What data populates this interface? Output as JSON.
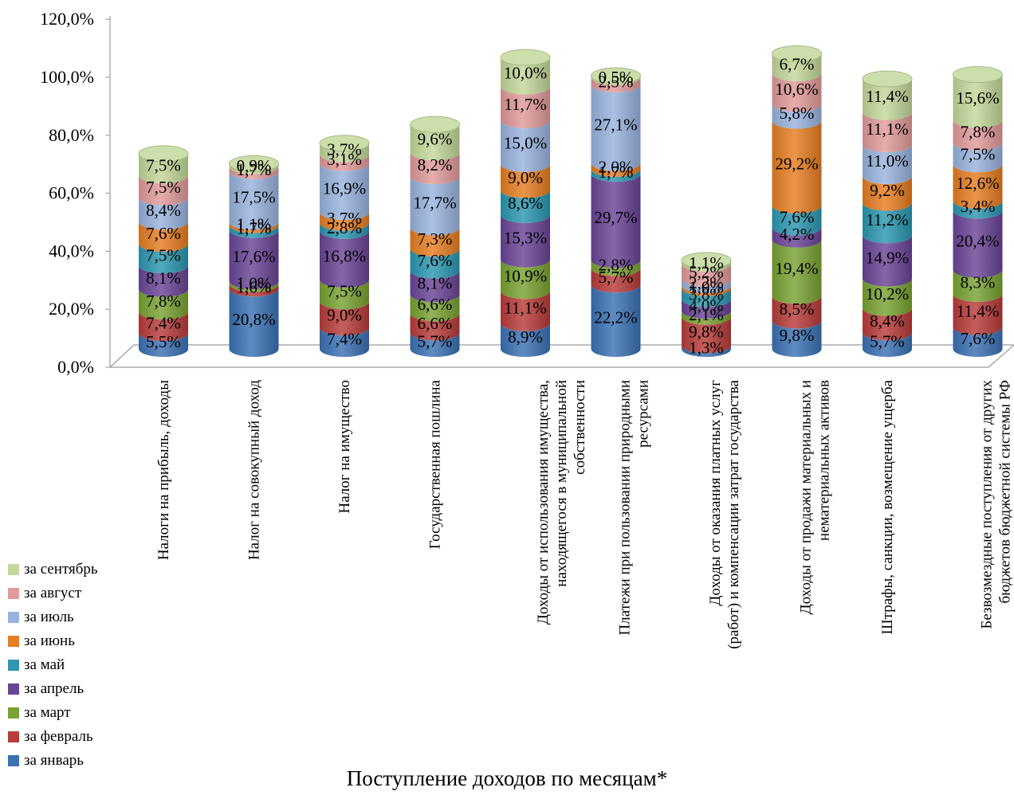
{
  "chart_data": {
    "type": "bar",
    "stacked": true,
    "three_d": true,
    "xlabel": "Поступление доходов по месяцам*",
    "ylabel": "",
    "ylim": [
      0,
      120
    ],
    "yticks": [
      "0,0%",
      "20,0%",
      "40,0%",
      "60,0%",
      "80,0%",
      "100,0%",
      "120,0%"
    ],
    "legend_position": "bottom-left",
    "categories": [
      "Налоги на прибыль, доходы",
      "Налог на совокупный доход",
      "Налог на имущество",
      "Государственная пошлина",
      "Доходы от использования имущества, находящегося в муниципальной собственности",
      "Платежи при пользовании природными ресурсами",
      "Доходы от оказания платных услуг (работ) и компенсации затрат государства",
      "Доходы от продажи материальных и нематериальных активов",
      "Штрафы, санкции, возмещение ущерба",
      "Безвозмездные поступления от других бюджетов бюджетной системы РФ"
    ],
    "category_lines": [
      [
        "Налоги на прибыль, доходы"
      ],
      [
        "Налог на совокупный доход"
      ],
      [
        "Налог на имущество"
      ],
      [
        "Государственная пошлина"
      ],
      [
        "Доходы от использования имущества,",
        "находящегося в муниципальной",
        "собственности"
      ],
      [
        "Платежи при пользовании природными",
        "ресурсами"
      ],
      [
        "Доходы от оказания платных услуг",
        "(работ) и компенсации затрат государства"
      ],
      [
        "Доходы от продажи материальных и",
        "нематериальных активов"
      ],
      [
        "Штрафы, санкции, возмещение ущерба"
      ],
      [
        "Безвозмездные поступления от других",
        "бюджетов бюджетной системы РФ"
      ]
    ],
    "series": [
      {
        "name": "за январь",
        "color": "#3b72b4",
        "values": [
          5.5,
          20.8,
          7.4,
          5.7,
          8.9,
          22.2,
          1.3,
          9.8,
          5.7,
          7.6
        ],
        "labels": [
          "5,5%",
          "20,8%",
          "7,4%",
          "5,7%",
          "8,9%",
          "22,2%",
          "1,3%",
          "9,8%",
          "5,7%",
          "7,6%"
        ]
      },
      {
        "name": "за февраль",
        "color": "#b83c3a",
        "values": [
          7.4,
          1.6,
          9.0,
          6.6,
          11.1,
          5.7,
          9.8,
          8.5,
          8.4,
          11.4
        ],
        "labels": [
          "7,4%",
          "1,6%",
          "9,0%",
          "6,6%",
          "11,1%",
          "5,7%",
          "9,8%",
          "8,5%",
          "8,4%",
          "11,4%"
        ]
      },
      {
        "name": "за март",
        "color": "#79a232",
        "values": [
          7.8,
          1.0,
          7.5,
          6.6,
          10.9,
          2.8,
          2.1,
          19.4,
          10.2,
          8.3
        ],
        "labels": [
          "7,8%",
          "1,0%",
          "7,5%",
          "6,6%",
          "10,9%",
          "2,8%",
          "2,1%",
          "19,4%",
          "10,2%",
          "8,3%"
        ]
      },
      {
        "name": "за апрель",
        "color": "#6a4596",
        "values": [
          8.1,
          17.6,
          16.8,
          8.1,
          15.3,
          29.7,
          4.0,
          4.2,
          14.9,
          20.4
        ],
        "labels": [
          "8,1%",
          "17,6%",
          "16,8%",
          "8,1%",
          "15,3%",
          "29,7%",
          "4,0%",
          "4,2%",
          "14,9%",
          "20,4%"
        ]
      },
      {
        "name": "за май",
        "color": "#2b97b0",
        "values": [
          7.5,
          1.7,
          2.8,
          7.6,
          8.6,
          1.7,
          3.8,
          7.6,
          11.2,
          3.4
        ],
        "labels": [
          "7,5%",
          "1,7%",
          "2,8%",
          "7,6%",
          "8,6%",
          "1,7%",
          "3,8%",
          "7,6%",
          "11,2%",
          "3,4%"
        ]
      },
      {
        "name": "за июнь",
        "color": "#e67e22",
        "values": [
          7.6,
          1.1,
          3.7,
          7.3,
          9.0,
          2.0,
          1.0,
          29.2,
          9.2,
          12.6
        ],
        "labels": [
          "7,6%",
          "1,1%",
          "3,7%",
          "7,3%",
          "9,0%",
          "2,0%",
          "1,0%",
          "29,2%",
          "9,2%",
          "12,6%"
        ]
      },
      {
        "name": "за июль",
        "color": "#98b3de",
        "values": [
          8.4,
          17.5,
          16.9,
          17.7,
          15.0,
          27.1,
          2.2,
          5.8,
          11.0,
          7.5
        ],
        "labels": [
          "8,4%",
          "17,5%",
          "16,9%",
          "17,7%",
          "15,0%",
          "27,1%",
          "2,2%",
          "5,8%",
          "11,0%",
          "7,5%"
        ]
      },
      {
        "name": "за август",
        "color": "#e19b9a",
        "values": [
          7.5,
          1.7,
          3.1,
          8.2,
          11.7,
          2.5,
          5.2,
          10.6,
          11.1,
          7.8
        ],
        "labels": [
          "7,5%",
          "1,7%",
          "3,1%",
          "8,2%",
          "11,7%",
          "2,5%",
          "5,2%",
          "10,6%",
          "11,1%",
          "7,8%"
        ]
      },
      {
        "name": "за сентябрь",
        "color": "#c3d89a",
        "values": [
          7.5,
          0.9,
          3.7,
          9.6,
          10.0,
          0.5,
          1.1,
          6.7,
          11.4,
          15.6
        ],
        "labels": [
          "7,5%",
          "0,9%",
          "3,7%",
          "9,6%",
          "10,0%",
          "0,5%",
          "1,1%",
          "6,7%",
          "11,4%",
          "15,6%"
        ]
      }
    ]
  }
}
